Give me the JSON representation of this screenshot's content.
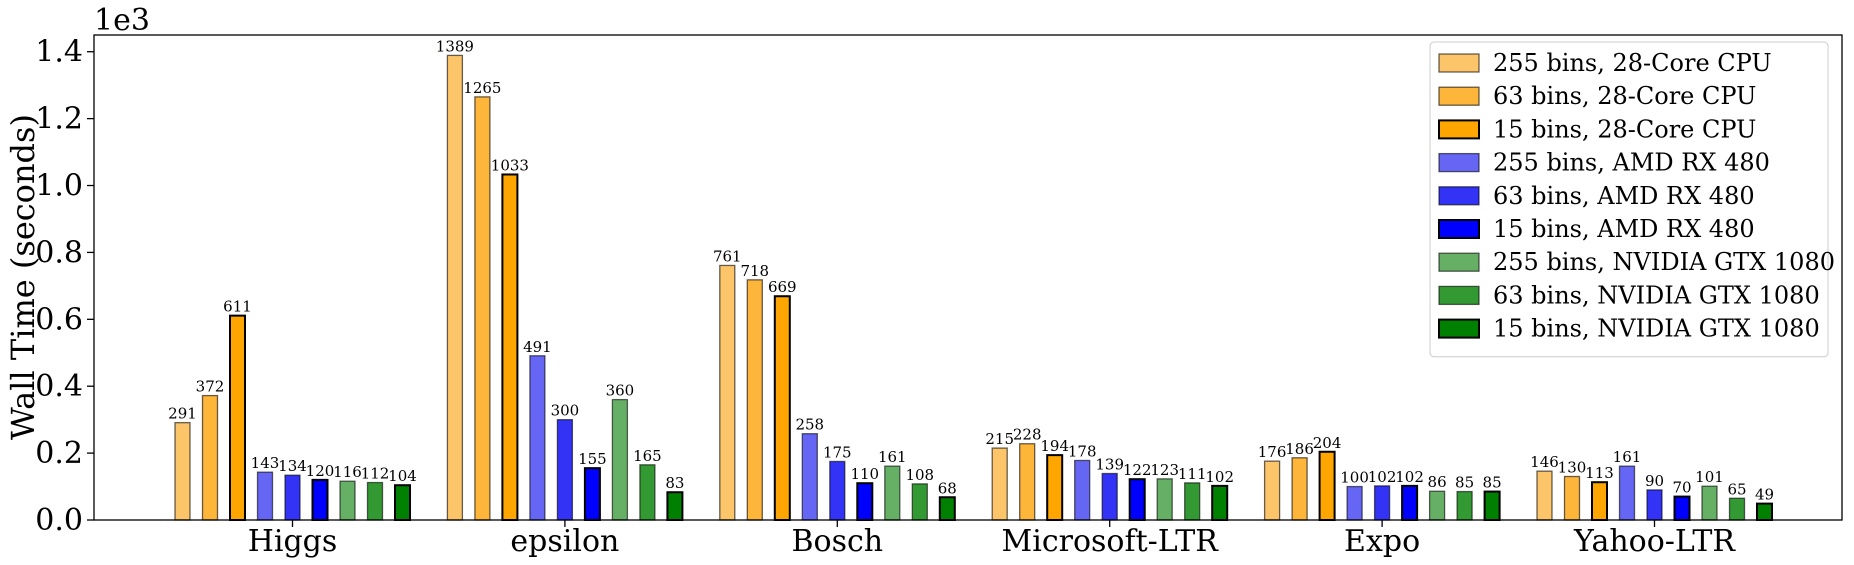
{
  "chart_data": {
    "type": "bar",
    "ylabel": "Wall Time (seconds)",
    "y_scale_label": "1e3",
    "ylim": [
      0,
      1.45
    ],
    "yticks": [
      "0.0",
      "0.2",
      "0.4",
      "0.6",
      "0.8",
      "1.0",
      "1.2",
      "1.4"
    ],
    "legend_position": "top-right",
    "grid": false,
    "categories": [
      "Higgs",
      "epsilon",
      "Bosch",
      "Microsoft-LTR",
      "Expo",
      "Yahoo-LTR"
    ],
    "series": [
      {
        "name": "255 bins, 28-Core CPU",
        "color": "#fdc56a",
        "values": [
          291,
          1389,
          761,
          215,
          176,
          146
        ],
        "labels": [
          "291",
          "1389",
          "761",
          "215",
          "176",
          "146"
        ]
      },
      {
        "name": "63 bins, 28-Core CPU",
        "color": "#fdb53a",
        "values": [
          372,
          1265,
          718,
          228,
          186,
          130
        ],
        "labels": [
          "372",
          "1265",
          "718",
          "228",
          "186",
          "130"
        ]
      },
      {
        "name": "15 bins, 28-Core CPU",
        "color": "#ffa500",
        "values": [
          611,
          1033,
          669,
          194,
          204,
          113
        ],
        "labels": [
          "611",
          "1033",
          "669",
          "194",
          "204",
          "113"
        ]
      },
      {
        "name": "255 bins, AMD RX 480",
        "color": "#6666f5",
        "values": [
          143,
          491,
          258,
          178,
          100,
          161
        ],
        "labels": [
          "143",
          "491",
          "258",
          "178",
          "100",
          "161"
        ]
      },
      {
        "name": "63 bins, AMD RX 480",
        "color": "#3333f5",
        "values": [
          134,
          300,
          175,
          139,
          102,
          90
        ],
        "labels": [
          "134",
          "300",
          "175",
          "139",
          "102",
          "90"
        ]
      },
      {
        "name": "15 bins, AMD RX 480",
        "color": "#0000ff",
        "values": [
          120,
          155,
          110,
          122,
          102,
          70
        ],
        "labels": [
          "120",
          "155",
          "110",
          "122",
          "102",
          "70"
        ]
      },
      {
        "name": "255 bins, NVIDIA GTX 1080",
        "color": "#66b066",
        "values": [
          116,
          360,
          161,
          123,
          86,
          101
        ],
        "labels": [
          "116",
          "360",
          "161",
          "123",
          "86",
          "101"
        ]
      },
      {
        "name": "63 bins, NVIDIA GTX 1080",
        "color": "#339933",
        "values": [
          112,
          165,
          108,
          111,
          85,
          65
        ],
        "labels": [
          "112",
          "165",
          "108",
          "111",
          "85",
          "65"
        ]
      },
      {
        "name": "15 bins, NVIDIA GTX 1080",
        "color": "#008000",
        "values": [
          104,
          83,
          68,
          102,
          85,
          49
        ],
        "labels": [
          "104",
          "83",
          "68",
          "102",
          "85",
          "49"
        ]
      }
    ]
  }
}
